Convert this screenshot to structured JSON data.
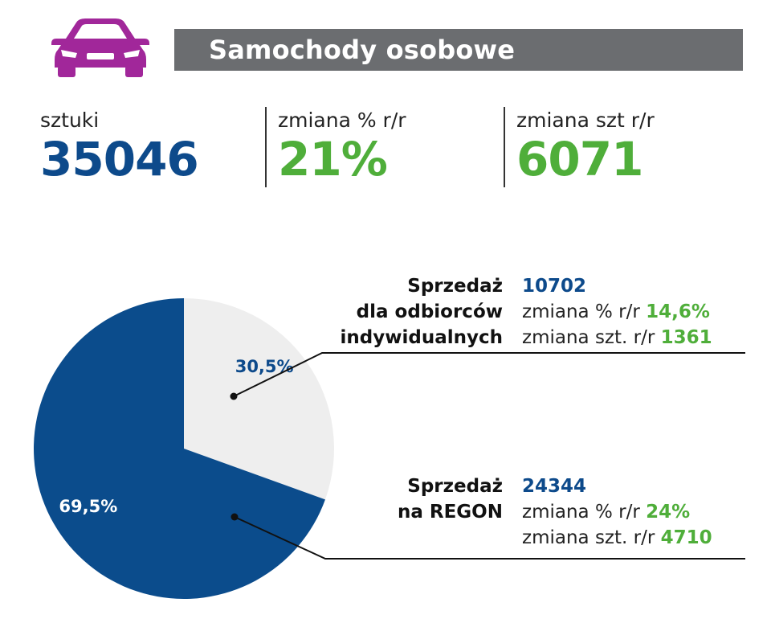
{
  "header": {
    "title": "Samochody osobowe"
  },
  "stats": {
    "units": {
      "label": "sztuki",
      "value": "35046"
    },
    "change_pct": {
      "label": "zmiana % r/r",
      "value": "21%"
    },
    "change_units": {
      "label": "zmiana szt r/r",
      "value": "6071"
    }
  },
  "segments": {
    "individual": {
      "title_lines": [
        "Sprzedaż",
        "dla odbiorców",
        "indywidualnych"
      ],
      "count": "10702",
      "pct_label": "zmiana % r/r",
      "pct_value": "14,6%",
      "units_label": "zmiana szt. r/r",
      "units_value": "1361"
    },
    "regon": {
      "title_lines": [
        "Sprzedaż",
        "na REGON"
      ],
      "count": "24344",
      "pct_label": "zmiana % r/r",
      "pct_value": "24%",
      "units_label": "zmiana szt. r/r",
      "units_value": "4710"
    }
  },
  "chart_data": {
    "type": "pie",
    "title": "",
    "slices": [
      {
        "name": "Sprzedaż dla odbiorców indywidualnych",
        "value": 30.5,
        "label": "30,5%",
        "color": "#eeeeee",
        "label_color": "#0d4a8b"
      },
      {
        "name": "Sprzedaż na REGON",
        "value": 69.5,
        "label": "69,5%",
        "color": "#0b4c8c",
        "label_color": "#ffffff"
      }
    ],
    "start_angle_deg": 0
  },
  "colors": {
    "accent_blue": "#0d4a8b",
    "accent_green": "#4fae3a",
    "header_bg": "#6b6d70",
    "icon": "#a1279a"
  }
}
